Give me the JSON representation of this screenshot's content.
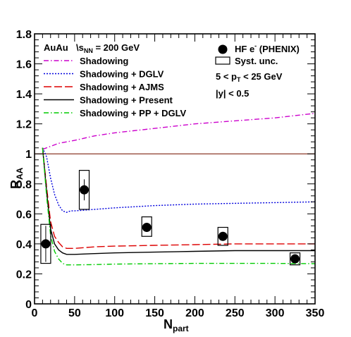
{
  "chart_data": {
    "type": "line",
    "xlabel": {
      "main": "N",
      "sub": "part"
    },
    "ylabel": {
      "main": "R",
      "sub": "AA"
    },
    "xlim": [
      0,
      350
    ],
    "ylim": [
      0,
      1.8
    ],
    "x_ticks": [
      0,
      50,
      100,
      150,
      200,
      250,
      300,
      350
    ],
    "x_tick_labels": [
      "0",
      "50",
      "100",
      "150",
      "200",
      "250",
      "300",
      "350"
    ],
    "y_ticks": [
      0,
      0.2,
      0.4,
      0.6,
      0.8,
      1.0,
      1.2,
      1.4,
      1.6,
      1.8
    ],
    "y_tick_labels": [
      "0",
      "0.2",
      "0.4",
      "0.6",
      "0.8",
      "1",
      "1.2",
      "1.4",
      "1.6",
      "1.8"
    ],
    "reference_line": {
      "y": 1.0,
      "color": "#8b3a2a"
    },
    "header": {
      "system": "AuAu",
      "energy_prefix": "\\",
      "energy_main": "s",
      "energy_sub": "NN",
      "energy_value": " = 200 GeV"
    },
    "series": [
      {
        "name": "Shadowing",
        "color": "#cc00cc",
        "dash": "dashdot",
        "x": [
          10,
          15,
          20,
          30,
          40,
          50,
          75,
          100,
          150,
          200,
          250,
          300,
          350
        ],
        "y": [
          1.03,
          1.04,
          1.05,
          1.07,
          1.08,
          1.09,
          1.12,
          1.14,
          1.17,
          1.2,
          1.22,
          1.24,
          1.27
        ]
      },
      {
        "name": "Shadowing + DGLV",
        "color": "#0000dd",
        "dash": "dot",
        "x": [
          10,
          15,
          20,
          25,
          30,
          35,
          40,
          45,
          50,
          75,
          100,
          150,
          200,
          250,
          300,
          350
        ],
        "y": [
          1.04,
          0.98,
          0.84,
          0.73,
          0.66,
          0.62,
          0.61,
          0.62,
          0.62,
          0.63,
          0.64,
          0.655,
          0.665,
          0.67,
          0.675,
          0.68
        ]
      },
      {
        "name": "Shadowing + AJMS",
        "color": "#dd0000",
        "dash": "longdash",
        "x": [
          10,
          15,
          20,
          25,
          30,
          35,
          40,
          50,
          75,
          100,
          150,
          200,
          250,
          300,
          350
        ],
        "y": [
          1.04,
          0.78,
          0.55,
          0.45,
          0.41,
          0.38,
          0.37,
          0.37,
          0.38,
          0.385,
          0.39,
          0.395,
          0.4,
          0.4,
          0.4
        ]
      },
      {
        "name": "Shadowing + Present",
        "color": "#000000",
        "dash": "solid",
        "x": [
          10,
          15,
          20,
          25,
          30,
          35,
          40,
          50,
          75,
          100,
          150,
          200,
          250,
          300,
          350
        ],
        "y": [
          1.04,
          0.75,
          0.5,
          0.4,
          0.36,
          0.34,
          0.33,
          0.33,
          0.335,
          0.34,
          0.345,
          0.35,
          0.355,
          0.355,
          0.355
        ]
      },
      {
        "name": "Shadowing + PP + DGLV",
        "color": "#00cc00",
        "dash": "dashdot",
        "x": [
          10,
          15,
          20,
          25,
          30,
          35,
          40,
          50,
          75,
          100,
          150,
          200,
          250,
          300,
          350
        ],
        "y": [
          1.04,
          0.72,
          0.46,
          0.35,
          0.3,
          0.27,
          0.26,
          0.26,
          0.262,
          0.265,
          0.268,
          0.27,
          0.27,
          0.27,
          0.268
        ]
      }
    ],
    "data_points": {
      "name": "HF e",
      "superscript": "-",
      "name_suffix": " (PHENIX)",
      "x": [
        14,
        62,
        140,
        235,
        325
      ],
      "y": [
        0.4,
        0.76,
        0.51,
        0.45,
        0.3
      ],
      "stat_err": [
        0.12,
        0.07,
        0.03,
        0.02,
        0.01
      ],
      "syst_lo": [
        0.27,
        0.63,
        0.45,
        0.39,
        0.26
      ],
      "syst_hi": [
        0.53,
        0.89,
        0.58,
        0.51,
        0.34
      ],
      "syst_half_width": [
        7,
        7,
        7,
        7,
        7
      ]
    },
    "syst_label": "Syst. unc.",
    "cuts": {
      "pt_prefix": "5 < p",
      "pt_sub": "T",
      "pt_suffix": " < 25 GeV",
      "rapidity": "|y| < 0.5"
    },
    "grid": false
  }
}
